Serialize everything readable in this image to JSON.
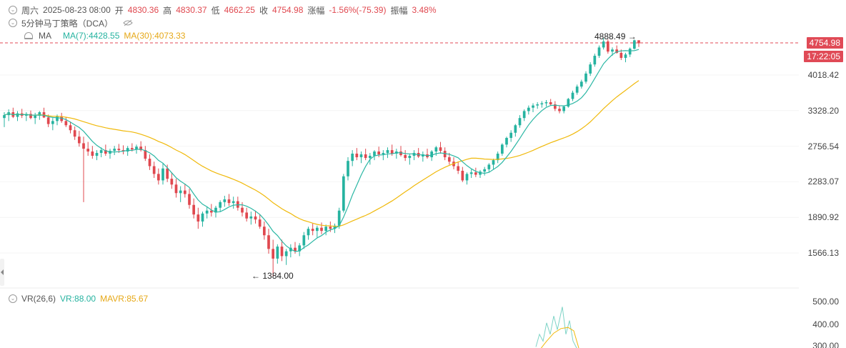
{
  "header": {
    "weekday": "周六",
    "datetime": "2025-08-23 08:00",
    "open_label": "开",
    "open_value": "4830.36",
    "high_label": "高",
    "high_value": "4830.37",
    "low_label": "低",
    "low_value": "4662.25",
    "close_label": "收",
    "close_value": "4754.98",
    "change_label": "涨幅",
    "change_value": "-1.56%(-75.39)",
    "amplitude_label": "振幅",
    "amplitude_value": "3.48%"
  },
  "strategy": {
    "label": "5分钟马丁策略（DCA）"
  },
  "ma": {
    "label": "MA",
    "ma7": "MA(7):4428.55",
    "ma30": "MA(30):4073.33"
  },
  "price_axis": {
    "labels": [
      "4018.42",
      "3328.20",
      "2756.54",
      "2283.07",
      "1890.92",
      "1566.13"
    ],
    "current_price": "4754.98",
    "countdown": "17:22:05"
  },
  "annotations": {
    "high": "4888.49",
    "low": "1384.00"
  },
  "sub_panel": {
    "title": "VR(26,6)",
    "vr": "VR:88.00",
    "mavr": "MAVR:85.67",
    "axis_labels": [
      "500.00",
      "400.00",
      "300.00"
    ]
  },
  "colors": {
    "up": "#26b3a0",
    "down": "#e0484f",
    "ma7": "#2bb7a4",
    "ma30": "#f0b90b"
  },
  "chart_data": {
    "type": "candlestick",
    "series": [
      {
        "name": "MA(7)"
      },
      {
        "name": "MA(30)"
      }
    ],
    "ohlc": [
      [
        3200,
        3300,
        3050,
        3250
      ],
      [
        3250,
        3350,
        3150,
        3300
      ],
      [
        3300,
        3380,
        3200,
        3220
      ],
      [
        3220,
        3320,
        3150,
        3280
      ],
      [
        3280,
        3360,
        3200,
        3240
      ],
      [
        3240,
        3300,
        3150,
        3270
      ],
      [
        3270,
        3330,
        3180,
        3200
      ],
      [
        3200,
        3290,
        3100,
        3240
      ],
      [
        3240,
        3320,
        3170,
        3300
      ],
      [
        3300,
        3380,
        3200,
        3210
      ],
      [
        3210,
        3260,
        3050,
        3100
      ],
      [
        3100,
        3200,
        3000,
        3150
      ],
      [
        3150,
        3260,
        3080,
        3230
      ],
      [
        3230,
        3290,
        3120,
        3150
      ],
      [
        3150,
        3220,
        3050,
        3080
      ],
      [
        3080,
        3140,
        2950,
        3000
      ],
      [
        3000,
        3060,
        2850,
        2900
      ],
      [
        2900,
        2990,
        2750,
        2800
      ],
      [
        2800,
        2900,
        2050,
        2720
      ],
      [
        2720,
        2820,
        2620,
        2680
      ],
      [
        2680,
        2760,
        2580,
        2620
      ],
      [
        2620,
        2700,
        2560,
        2660
      ],
      [
        2660,
        2740,
        2600,
        2700
      ],
      [
        2700,
        2780,
        2620,
        2650
      ],
      [
        2650,
        2720,
        2580,
        2690
      ],
      [
        2690,
        2760,
        2630,
        2720
      ],
      [
        2720,
        2790,
        2660,
        2700
      ],
      [
        2700,
        2770,
        2640,
        2680
      ],
      [
        2680,
        2760,
        2620,
        2730
      ],
      [
        2730,
        2800,
        2680,
        2710
      ],
      [
        2710,
        2780,
        2650,
        2750
      ],
      [
        2750,
        2830,
        2680,
        2700
      ],
      [
        2700,
        2760,
        2550,
        2580
      ],
      [
        2580,
        2640,
        2430,
        2480
      ],
      [
        2480,
        2540,
        2330,
        2380
      ],
      [
        2380,
        2450,
        2250,
        2300
      ],
      [
        2300,
        2520,
        2250,
        2450
      ],
      [
        2450,
        2500,
        2280,
        2320
      ],
      [
        2320,
        2400,
        2200,
        2250
      ],
      [
        2250,
        2320,
        2100,
        2150
      ],
      [
        2150,
        2230,
        2050,
        2180
      ],
      [
        2180,
        2260,
        2100,
        2140
      ],
      [
        2140,
        2200,
        1980,
        2020
      ],
      [
        2020,
        2090,
        1880,
        1920
      ],
      [
        1920,
        1990,
        1780,
        1850
      ],
      [
        1850,
        1950,
        1800,
        1930
      ],
      [
        1930,
        2000,
        1880,
        1960
      ],
      [
        1960,
        2030,
        1900,
        1940
      ],
      [
        1940,
        2010,
        1890,
        1990
      ],
      [
        1990,
        2070,
        1950,
        2050
      ],
      [
        2050,
        2120,
        2000,
        2080
      ],
      [
        2080,
        2140,
        2010,
        2040
      ],
      [
        2040,
        2110,
        1980,
        2060
      ],
      [
        2060,
        2110,
        1960,
        1990
      ],
      [
        1990,
        2050,
        1900,
        1940
      ],
      [
        1940,
        1990,
        1850,
        1880
      ],
      [
        1880,
        1950,
        1820,
        1900
      ],
      [
        1900,
        1960,
        1830,
        1870
      ],
      [
        1870,
        1920,
        1780,
        1800
      ],
      [
        1800,
        1850,
        1680,
        1720
      ],
      [
        1720,
        1780,
        1560,
        1600
      ],
      [
        1600,
        1680,
        1384,
        1520
      ],
      [
        1520,
        1640,
        1480,
        1620
      ],
      [
        1620,
        1680,
        1500,
        1540
      ],
      [
        1540,
        1600,
        1470,
        1580
      ],
      [
        1580,
        1640,
        1530,
        1610
      ],
      [
        1610,
        1660,
        1560,
        1580
      ],
      [
        1580,
        1650,
        1540,
        1630
      ],
      [
        1630,
        1750,
        1600,
        1720
      ],
      [
        1720,
        1800,
        1680,
        1780
      ],
      [
        1780,
        1830,
        1720,
        1760
      ],
      [
        1760,
        1810,
        1700,
        1790
      ],
      [
        1790,
        1840,
        1730,
        1760
      ],
      [
        1760,
        1820,
        1720,
        1800
      ],
      [
        1800,
        1850,
        1750,
        1780
      ],
      [
        1780,
        1830,
        1740,
        1810
      ],
      [
        1810,
        1990,
        1780,
        1960
      ],
      [
        1960,
        2380,
        1940,
        2350
      ],
      [
        2350,
        2600,
        2300,
        2550
      ],
      [
        2550,
        2700,
        2480,
        2650
      ],
      [
        2650,
        2730,
        2560,
        2600
      ],
      [
        2600,
        2680,
        2520,
        2640
      ],
      [
        2640,
        2720,
        2560,
        2590
      ],
      [
        2590,
        2660,
        2500,
        2620
      ],
      [
        2620,
        2700,
        2560,
        2680
      ],
      [
        2680,
        2750,
        2600,
        2640
      ],
      [
        2640,
        2700,
        2560,
        2660
      ],
      [
        2660,
        2740,
        2590,
        2700
      ],
      [
        2700,
        2780,
        2620,
        2650
      ],
      [
        2650,
        2720,
        2580,
        2680
      ],
      [
        2680,
        2760,
        2610,
        2630
      ],
      [
        2630,
        2700,
        2550,
        2590
      ],
      [
        2590,
        2650,
        2500,
        2620
      ],
      [
        2620,
        2700,
        2560,
        2660
      ],
      [
        2660,
        2730,
        2590,
        2610
      ],
      [
        2610,
        2680,
        2540,
        2640
      ],
      [
        2640,
        2720,
        2580,
        2600
      ],
      [
        2600,
        2700,
        2550,
        2680
      ],
      [
        2680,
        2760,
        2620,
        2740
      ],
      [
        2740,
        2820,
        2650,
        2690
      ],
      [
        2690,
        2740,
        2560,
        2600
      ],
      [
        2600,
        2660,
        2500,
        2540
      ],
      [
        2540,
        2600,
        2440,
        2480
      ],
      [
        2480,
        2540,
        2380,
        2420
      ],
      [
        2420,
        2470,
        2280,
        2300
      ],
      [
        2300,
        2400,
        2250,
        2380
      ],
      [
        2380,
        2440,
        2330,
        2400
      ],
      [
        2400,
        2460,
        2340,
        2370
      ],
      [
        2370,
        2430,
        2330,
        2410
      ],
      [
        2410,
        2470,
        2360,
        2440
      ],
      [
        2440,
        2520,
        2400,
        2500
      ],
      [
        2500,
        2580,
        2440,
        2560
      ],
      [
        2560,
        2680,
        2520,
        2650
      ],
      [
        2650,
        2800,
        2620,
        2780
      ],
      [
        2780,
        2900,
        2740,
        2880
      ],
      [
        2880,
        3000,
        2820,
        2960
      ],
      [
        2960,
        3100,
        2900,
        3080
      ],
      [
        3080,
        3250,
        3040,
        3200
      ],
      [
        3200,
        3350,
        3150,
        3320
      ],
      [
        3320,
        3420,
        3260,
        3380
      ],
      [
        3380,
        3460,
        3300,
        3420
      ],
      [
        3420,
        3480,
        3360,
        3440
      ],
      [
        3440,
        3500,
        3380,
        3460
      ],
      [
        3460,
        3520,
        3400,
        3480
      ],
      [
        3480,
        3540,
        3420,
        3440
      ],
      [
        3440,
        3500,
        3320,
        3360
      ],
      [
        3360,
        3420,
        3280,
        3320
      ],
      [
        3320,
        3420,
        3280,
        3400
      ],
      [
        3400,
        3560,
        3380,
        3540
      ],
      [
        3540,
        3700,
        3500,
        3660
      ],
      [
        3660,
        3820,
        3620,
        3780
      ],
      [
        3780,
        3920,
        3740,
        3880
      ],
      [
        3880,
        4100,
        3840,
        4050
      ],
      [
        4050,
        4300,
        4000,
        4250
      ],
      [
        4250,
        4500,
        4200,
        4450
      ],
      [
        4450,
        4700,
        4400,
        4650
      ],
      [
        4650,
        4888.49,
        4600,
        4800
      ],
      [
        4800,
        4850,
        4500,
        4550
      ],
      [
        4550,
        4650,
        4450,
        4600
      ],
      [
        4600,
        4700,
        4500,
        4520
      ],
      [
        4520,
        4600,
        4350,
        4400
      ],
      [
        4400,
        4520,
        4300,
        4480
      ],
      [
        4480,
        4650,
        4420,
        4620
      ],
      [
        4620,
        4850,
        4600,
        4830
      ],
      [
        4830.36,
        4830.37,
        4662.25,
        4754.98
      ]
    ],
    "y_axis_ticks": [
      4018.42,
      3328.2,
      2756.54,
      2283.07,
      1890.92,
      1566.13
    ],
    "current_price": 4754.98,
    "high": 4888.49,
    "low": 1384.0,
    "vr_axis_ticks": [
      500.0,
      400.0,
      300.0
    ]
  }
}
